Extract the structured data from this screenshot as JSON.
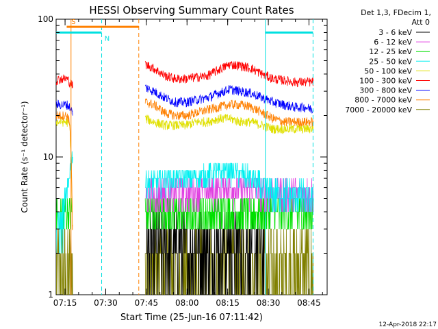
{
  "chart_data": {
    "type": "line",
    "title": "HESSI Observing Summary Count Rates",
    "xlabel": "Start Time (25-Jun-16 07:11:42)",
    "ylabel": "Count Rate (s⁻¹ detector⁻¹)",
    "yscale": "log",
    "ylim": [
      1,
      100
    ],
    "xlim_minutes": [
      0,
      100
    ],
    "x_ticks": [
      {
        "label": "07:15",
        "minutes": 3.3
      },
      {
        "label": "07:30",
        "minutes": 18.3
      },
      {
        "label": "07:45",
        "minutes": 33.3
      },
      {
        "label": "08:00",
        "minutes": 48.3
      },
      {
        "label": "08:15",
        "minutes": 63.3
      },
      {
        "label": "08:30",
        "minutes": 78.3
      },
      {
        "label": "08:45",
        "minutes": 93.3
      }
    ],
    "y_ticks": [
      {
        "label": "1",
        "value": 1
      },
      {
        "label": "10",
        "value": 10
      },
      {
        "label": "100",
        "value": 100
      }
    ],
    "legend": {
      "placement": "right",
      "header": [
        "Det 1,3, FDecim 1,",
        "Att 0"
      ],
      "entries": [
        {
          "name": "3 - 6 keV",
          "color": "#000000"
        },
        {
          "name": "6 - 12 keV",
          "color": "#e040e0"
        },
        {
          "name": "12 - 25 keV",
          "color": "#00e000"
        },
        {
          "name": "25 - 50 keV",
          "color": "#00f0f0"
        },
        {
          "name": "50 - 100 keV",
          "color": "#e0e000"
        },
        {
          "name": "100 - 300 keV",
          "color": "#ff0000"
        },
        {
          "name": "300 - 800 keV",
          "color": "#0000ff"
        },
        {
          "name": "800 - 7000 keV",
          "color": "#ff8000"
        },
        {
          "name": "7000 - 20000 keV",
          "color": "#808000"
        }
      ]
    },
    "flag_bars": [
      {
        "label": "S",
        "color": "#ff8000",
        "x_minutes": [
          3.9,
          30.5
        ],
        "level": 88
      },
      {
        "label": "N",
        "color": "#00e0e0",
        "x_minutes": [
          0,
          16.8
        ],
        "level": 80
      },
      {
        "label": "",
        "color": "#00e0e0",
        "x_minutes": [
          77.2,
          94.8
        ],
        "level": 80
      }
    ],
    "vlines": [
      {
        "x_minutes": 5.5,
        "color": "#ff8000",
        "style": "solid"
      },
      {
        "x_minutes": 16.8,
        "color": "#00e0e0",
        "style": "dashed"
      },
      {
        "x_minutes": 30.5,
        "color": "#ff8000",
        "style": "dashed"
      },
      {
        "x_minutes": 77.2,
        "color": "#00e0e0",
        "style": "solid"
      },
      {
        "x_minutes": 94.8,
        "color": "#00e0e0",
        "style": "dashed"
      }
    ],
    "series": [
      {
        "name": "100 - 300 keV",
        "color": "#ff0000",
        "x": [
          0,
          2,
          4,
          5,
          6,
          33,
          36,
          40,
          44,
          48,
          52,
          56,
          60,
          64,
          68,
          72,
          76,
          80,
          84,
          88,
          92,
          95
        ],
        "y": [
          36,
          37,
          37,
          35,
          33,
          47,
          44,
          39,
          37,
          37,
          38,
          39,
          43,
          47,
          46,
          44,
          40,
          37,
          36,
          35,
          35,
          35
        ]
      },
      {
        "name": "300 - 800 keV",
        "color": "#0000ff",
        "x": [
          0,
          2,
          4,
          5,
          6,
          33,
          36,
          40,
          44,
          48,
          52,
          56,
          60,
          64,
          68,
          72,
          76,
          80,
          84,
          88,
          92,
          95
        ],
        "y": [
          24,
          24,
          24,
          23,
          21,
          32,
          30,
          27,
          25,
          25,
          26,
          27,
          29,
          31,
          30,
          29,
          27,
          25,
          24,
          23,
          23,
          22
        ]
      },
      {
        "name": "800 - 7000 keV",
        "color": "#ff8000",
        "x": [
          0,
          2,
          4,
          5,
          6,
          33,
          36,
          40,
          44,
          48,
          52,
          56,
          60,
          64,
          68,
          72,
          76,
          80,
          84,
          88,
          92,
          95
        ],
        "y": [
          20,
          20,
          20,
          18,
          3,
          25,
          24,
          21,
          20,
          20,
          21,
          22,
          23,
          24,
          24,
          23,
          21,
          19,
          18,
          18,
          18,
          18
        ]
      },
      {
        "name": "50 - 100 keV",
        "color": "#e0e000",
        "x": [
          0,
          2,
          4,
          5,
          6,
          33,
          36,
          40,
          44,
          48,
          52,
          56,
          60,
          64,
          68,
          72,
          76,
          80,
          84,
          88,
          92,
          95
        ],
        "y": [
          18,
          18,
          18,
          17,
          3,
          19,
          18,
          17,
          17,
          17,
          18,
          18,
          19,
          19,
          18,
          18,
          17,
          16,
          16,
          16,
          16,
          16
        ]
      },
      {
        "name": "25 - 50 keV",
        "color": "#00f0f0",
        "x": [
          0,
          2,
          4,
          5,
          6,
          33,
          40,
          48,
          56,
          60,
          64,
          68,
          72,
          76,
          80,
          88,
          95
        ],
        "y": [
          3,
          3,
          5,
          8,
          10,
          6.5,
          6.8,
          7,
          7.5,
          7.8,
          8,
          7.5,
          6.8,
          6,
          5.5,
          5.2,
          5
        ]
      },
      {
        "name": "6 - 12 keV",
        "color": "#e040e0",
        "x": [
          33,
          40,
          48,
          56,
          64,
          72,
          80,
          88,
          95
        ],
        "y": [
          5.5,
          5.5,
          5.6,
          5.8,
          6,
          5.8,
          5.5,
          5.5,
          5.4
        ]
      },
      {
        "name": "12 - 25 keV",
        "color": "#00e000",
        "x": [
          0,
          3,
          6,
          33,
          40,
          48,
          56,
          64,
          72,
          80,
          88,
          95
        ],
        "y": [
          4,
          4,
          4,
          4,
          4,
          4,
          4,
          4,
          4,
          4,
          4,
          4
        ]
      },
      {
        "name": "3 - 6 keV",
        "color": "#000000",
        "x": [
          33,
          40,
          48,
          56,
          64,
          72,
          77
        ],
        "y": [
          2.3,
          2.3,
          2.3,
          2.3,
          2.3,
          2.3,
          2.3
        ]
      },
      {
        "name": "7000 - 20000 keV",
        "color": "#808000",
        "x": [
          0,
          3,
          6,
          33,
          40,
          48,
          56,
          64,
          72,
          80,
          88,
          95
        ],
        "y": [
          1.5,
          1.5,
          1.5,
          1.5,
          1.5,
          1.5,
          1.5,
          1.5,
          1.5,
          1.5,
          1.5,
          1.5
        ]
      }
    ]
  },
  "footer": {
    "date": "12-Apr-2018 22:17"
  }
}
